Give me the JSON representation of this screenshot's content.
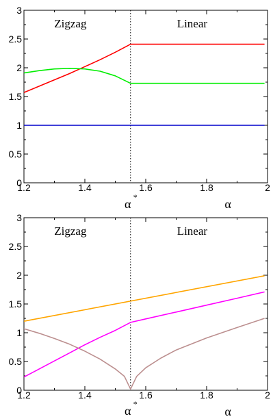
{
  "chart_data": [
    {
      "type": "line",
      "xlim": [
        1.2,
        2.0
      ],
      "ylim": [
        0,
        3
      ],
      "x_ticks": [
        "1.2",
        "1.4",
        "1.6",
        "1.8",
        "2"
      ],
      "y_ticks": [
        "0",
        "0.5",
        "1",
        "1.5",
        "2",
        "2.5",
        "3"
      ],
      "x_axis_labels": {
        "critical": "α",
        "critical_sup": "*",
        "main": "α"
      },
      "region_labels": [
        "Zigzag",
        "Linear"
      ],
      "critical_x": 1.55,
      "series": [
        {
          "color": "#ff0000",
          "x": [
            1.2,
            1.25,
            1.3,
            1.35,
            1.4,
            1.45,
            1.5,
            1.55,
            1.6,
            1.7,
            1.8,
            1.9,
            1.99
          ],
          "y": [
            1.57,
            1.68,
            1.79,
            1.9,
            2.02,
            2.14,
            2.27,
            2.41,
            2.41,
            2.41,
            2.41,
            2.41,
            2.41
          ]
        },
        {
          "color": "#00ee00",
          "x": [
            1.2,
            1.25,
            1.3,
            1.35,
            1.4,
            1.45,
            1.5,
            1.55,
            1.6,
            1.7,
            1.8,
            1.9,
            1.99
          ],
          "y": [
            1.91,
            1.95,
            1.98,
            1.99,
            1.98,
            1.94,
            1.86,
            1.73,
            1.73,
            1.73,
            1.73,
            1.73,
            1.73
          ]
        },
        {
          "color": "#0000cc",
          "x": [
            1.2,
            1.99
          ],
          "y": [
            1.0,
            1.0
          ]
        }
      ]
    },
    {
      "type": "line",
      "xlim": [
        1.2,
        2.0
      ],
      "ylim": [
        0,
        3
      ],
      "x_ticks": [
        "1.2",
        "1.4",
        "1.6",
        "1.8",
        "2"
      ],
      "y_ticks": [
        "0",
        "0.5",
        "1",
        "1.5",
        "2",
        "2.5",
        "3"
      ],
      "x_axis_labels": {
        "critical": "α",
        "critical_sup": "*",
        "main": "α"
      },
      "region_labels": [
        "Zigzag",
        "Linear"
      ],
      "critical_x": 1.55,
      "series": [
        {
          "color": "#ffa500",
          "x": [
            1.2,
            1.99
          ],
          "y": [
            1.2,
            1.99
          ]
        },
        {
          "color": "#ff00ff",
          "x": [
            1.2,
            1.25,
            1.3,
            1.35,
            1.4,
            1.45,
            1.5,
            1.55,
            1.6,
            1.7,
            1.8,
            1.9,
            1.99
          ],
          "y": [
            0.23,
            0.37,
            0.51,
            0.65,
            0.79,
            0.92,
            1.04,
            1.18,
            1.24,
            1.36,
            1.48,
            1.6,
            1.71
          ]
        },
        {
          "color": "#bc8f8f",
          "x": [
            1.2,
            1.25,
            1.3,
            1.35,
            1.4,
            1.45,
            1.5,
            1.53,
            1.55,
            1.57,
            1.6,
            1.65,
            1.7,
            1.8,
            1.9,
            1.99
          ],
          "y": [
            1.07,
            0.99,
            0.9,
            0.8,
            0.68,
            0.54,
            0.37,
            0.24,
            0.02,
            0.24,
            0.39,
            0.56,
            0.7,
            0.91,
            1.09,
            1.25
          ]
        }
      ]
    }
  ]
}
